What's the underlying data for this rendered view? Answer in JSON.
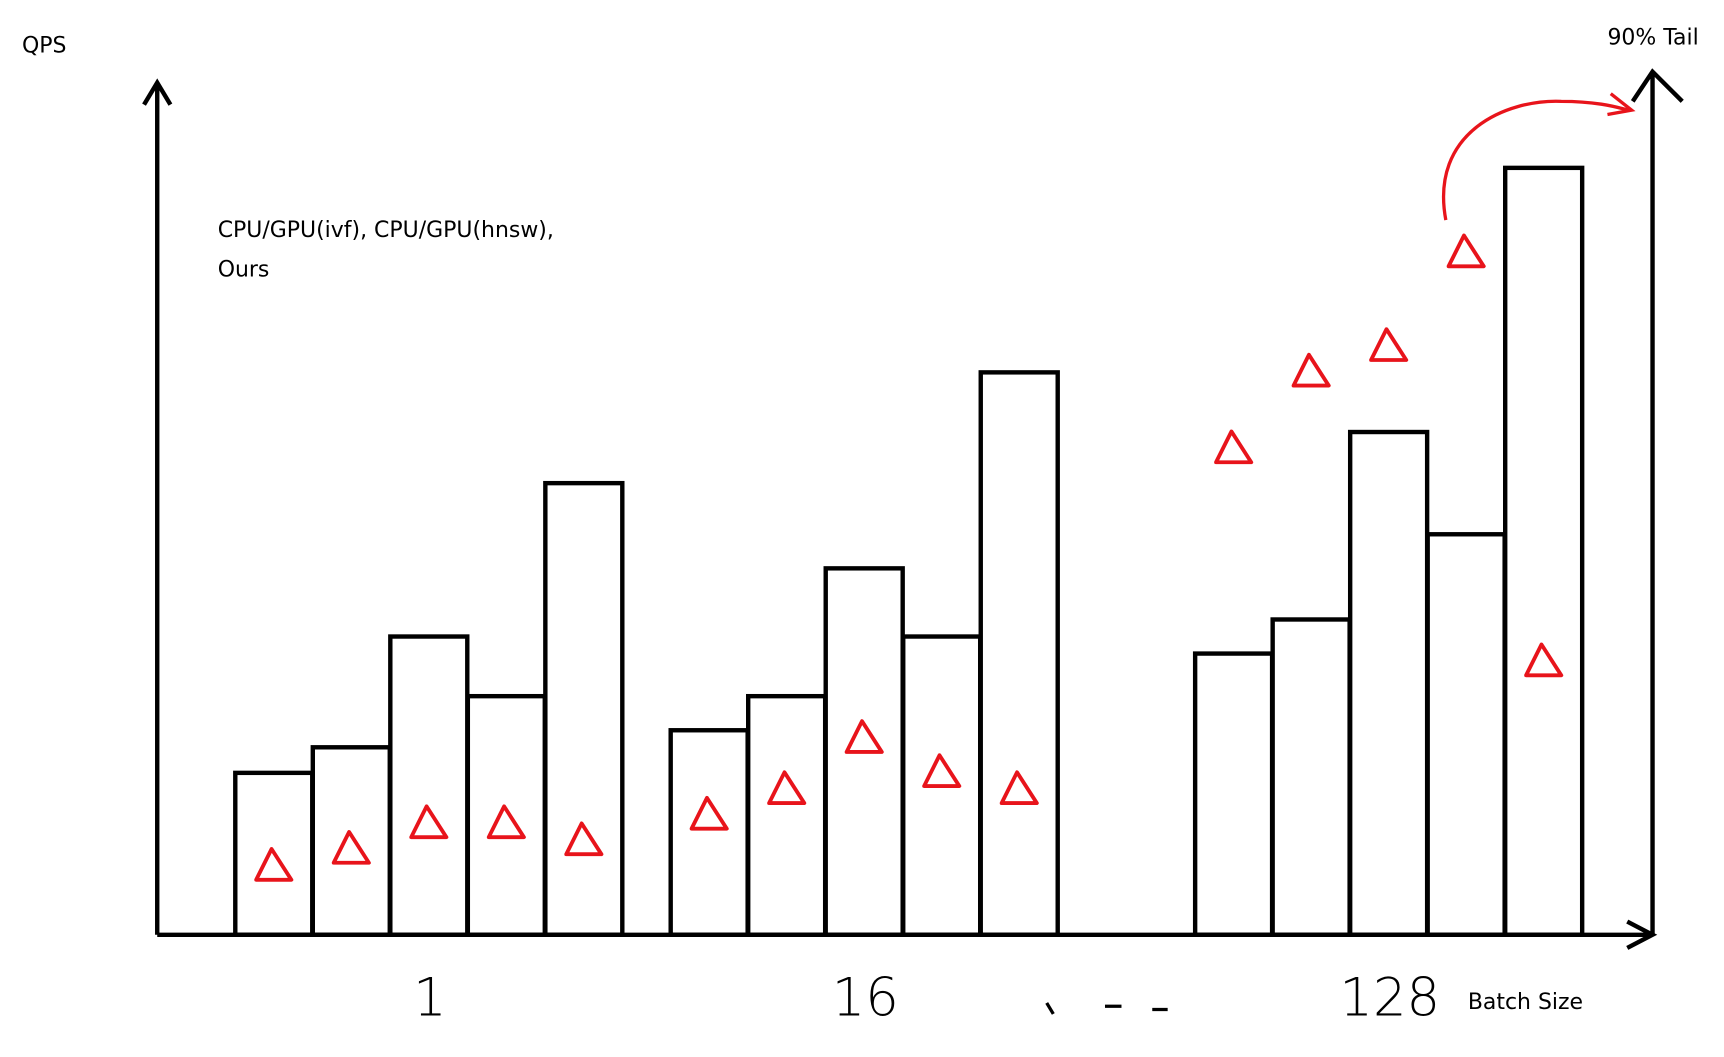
{
  "chart_data": {
    "type": "bar",
    "y_label": "QPS",
    "y2_label": "90% Tail",
    "x_label": "Batch Size",
    "legend_lines": [
      "CPU/GPU(ivf), CPU/GPU(hnsw),",
      "Ours"
    ],
    "categories": [
      "1",
      "16",
      "128"
    ],
    "ylim": [
      0,
      100
    ],
    "y2lim": [
      0,
      100
    ],
    "series": [
      {
        "color": "#000000",
        "values": [
          19,
          24,
          33
        ]
      },
      {
        "color": "#000000",
        "values": [
          22,
          28,
          37
        ]
      },
      {
        "color": "#000000",
        "values": [
          35,
          43,
          59
        ]
      },
      {
        "color": "#000000",
        "values": [
          28,
          35,
          47
        ]
      },
      {
        "color": "#000000",
        "values": [
          53,
          66,
          90
        ]
      }
    ],
    "tail_series": [
      {
        "color": "#e8141b",
        "axis": "y2",
        "values": [
          8,
          14,
          57
        ]
      },
      {
        "color": "#e8141b",
        "axis": "y2",
        "values": [
          10,
          17,
          66
        ]
      },
      {
        "color": "#e8141b",
        "axis": "y2",
        "values": [
          13,
          23,
          69
        ]
      },
      {
        "color": "#e8141b",
        "axis": "y2",
        "values": [
          13,
          19,
          80
        ]
      },
      {
        "color": "#e8141b",
        "axis": "y2",
        "values": [
          11,
          17,
          32
        ]
      }
    ]
  }
}
